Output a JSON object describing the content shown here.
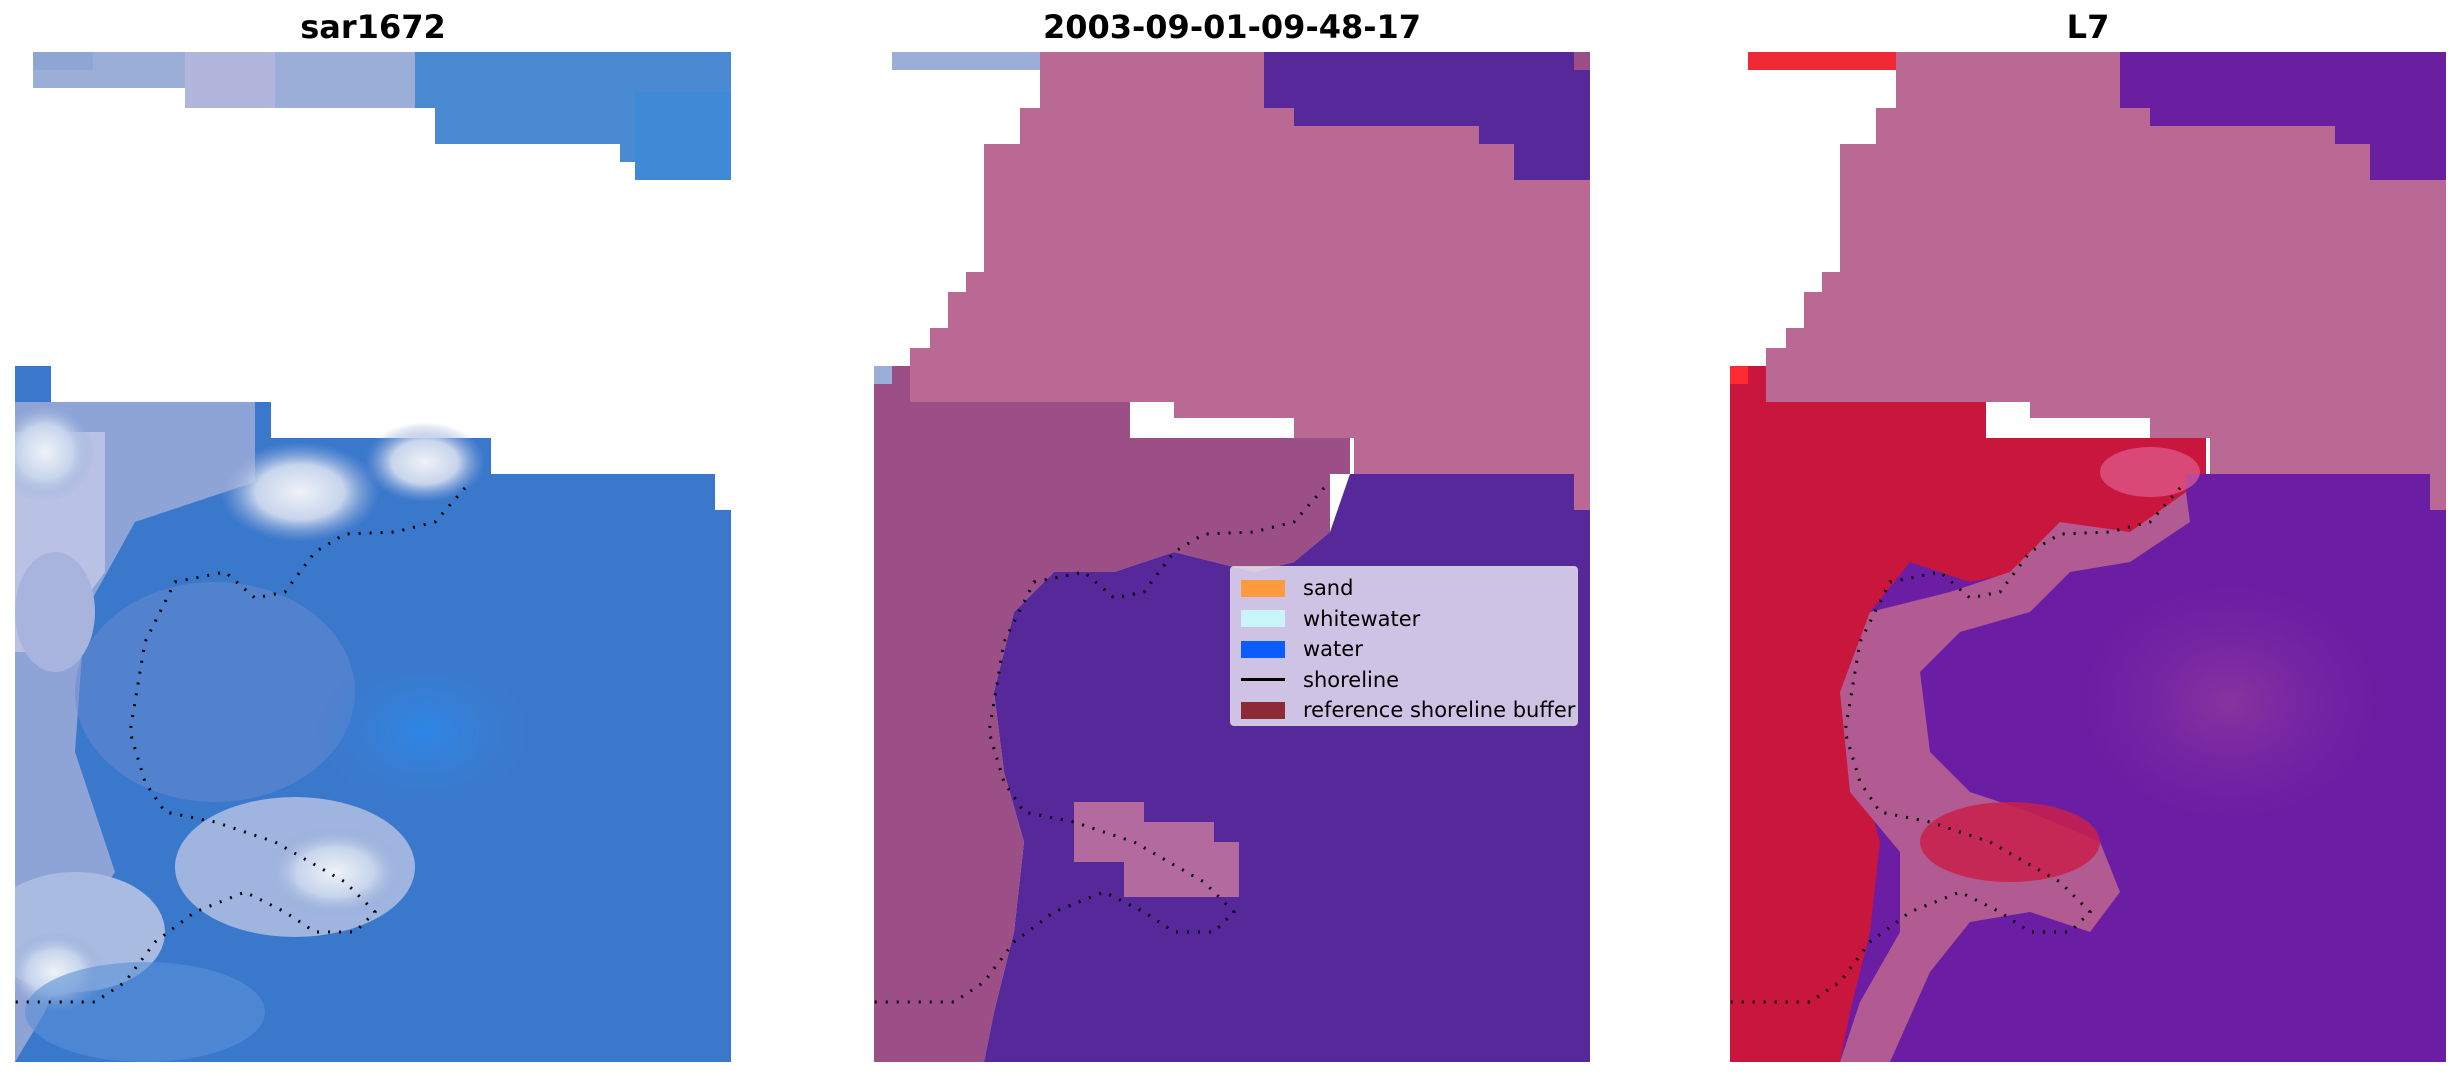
{
  "figure": {
    "panels": [
      {
        "title": "sar1672"
      },
      {
        "title": "2003-09-01-09-48-17"
      },
      {
        "title": "L7"
      }
    ],
    "legend": [
      {
        "label": "sand",
        "color": "#ff9a3d",
        "kind": "patch"
      },
      {
        "label": "whitewater",
        "color": "#c9f4f9",
        "kind": "patch"
      },
      {
        "label": "water",
        "color": "#0d5cff",
        "kind": "patch"
      },
      {
        "label": "shoreline",
        "color": "#000000",
        "kind": "line"
      },
      {
        "label": "reference shoreline buffer",
        "color": "#8c2a36",
        "kind": "patch"
      }
    ],
    "colors": {
      "rgb_water": "#3a7fd0",
      "rgb_shallow": "#7a9bd2",
      "rgb_whitewater": "#d8e2f0",
      "rgb_foam": "#eef2f8",
      "class_water": "#56289a",
      "class_buffer_overlay": "#ba6894",
      "class_landward": "#9b4f86",
      "index_high": "#c9163c",
      "index_low": "#6b1ea3",
      "index_mid": "#b25a92",
      "index_peak": "#ff2b30"
    }
  }
}
